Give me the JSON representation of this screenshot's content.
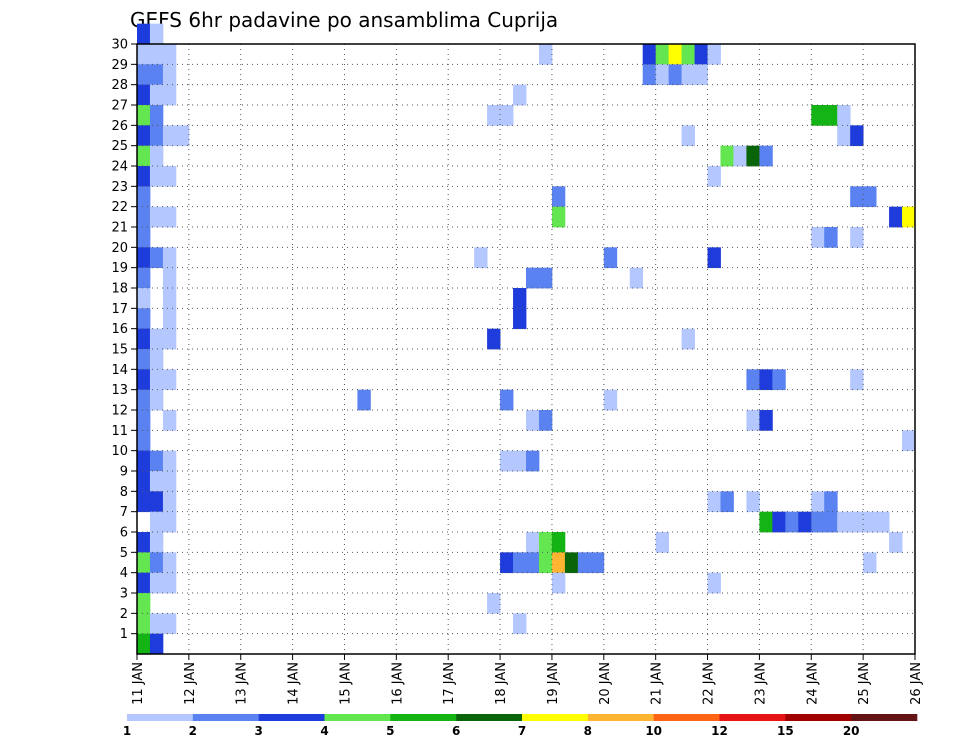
{
  "chart_data": {
    "type": "heatmap",
    "title": "GEFS 6hr padavine po ansamblima Cuprija",
    "xlabel": "",
    "ylabel": "",
    "x_ticks": [
      "11 JAN",
      "12 JAN",
      "13 JAN",
      "14 JAN",
      "15 JAN",
      "16 JAN",
      "17 JAN",
      "18 JAN",
      "19 JAN",
      "20 JAN",
      "21 JAN",
      "22 JAN",
      "23 JAN",
      "24 JAN",
      "25 JAN",
      "26 JAN"
    ],
    "xlim": [
      11,
      26
    ],
    "y_ticks": [
      "1",
      "2",
      "3",
      "4",
      "5",
      "6",
      "7",
      "8",
      "9",
      "10",
      "11",
      "12",
      "13",
      "14",
      "15",
      "16",
      "17",
      "18",
      "19",
      "20",
      "21",
      "22",
      "23",
      "24",
      "25",
      "26",
      "27",
      "28",
      "29",
      "30"
    ],
    "ylim": [
      0,
      30
    ],
    "grid": true,
    "time_step_hours": 6,
    "legend": {
      "placement": "bottom",
      "colors": [
        "#b4c8ff",
        "#5a82f0",
        "#1e3cdc",
        "#64e650",
        "#14b414",
        "#0a640a",
        "#ffff00",
        "#ffb432",
        "#ff6414",
        "#e61414",
        "#a00000",
        "#641414"
      ],
      "labels": [
        "1",
        "2",
        "3",
        "4",
        "5",
        "6",
        "7",
        "8",
        "10",
        "12",
        "15",
        "20"
      ]
    },
    "cells": [
      {
        "member": 30,
        "day": 11.0,
        "level": 3
      },
      {
        "member": 30,
        "day": 11.25,
        "level": 1
      },
      {
        "member": 29,
        "day": 11.0,
        "level": 1
      },
      {
        "member": 29,
        "day": 11.25,
        "level": 1
      },
      {
        "member": 29,
        "day": 11.5,
        "level": 1
      },
      {
        "member": 29,
        "day": 18.75,
        "level": 1
      },
      {
        "member": 29,
        "day": 20.75,
        "level": 3
      },
      {
        "member": 29,
        "day": 21.0,
        "level": 4
      },
      {
        "member": 29,
        "day": 21.25,
        "level": 7
      },
      {
        "member": 29,
        "day": 21.5,
        "level": 4
      },
      {
        "member": 29,
        "day": 21.75,
        "level": 3
      },
      {
        "member": 29,
        "day": 22.0,
        "level": 1
      },
      {
        "member": 28,
        "day": 11.0,
        "level": 2
      },
      {
        "member": 28,
        "day": 11.25,
        "level": 2
      },
      {
        "member": 28,
        "day": 11.5,
        "level": 1
      },
      {
        "member": 28,
        "day": 20.75,
        "level": 2
      },
      {
        "member": 28,
        "day": 21.0,
        "level": 1
      },
      {
        "member": 28,
        "day": 21.25,
        "level": 2
      },
      {
        "member": 28,
        "day": 21.5,
        "level": 1
      },
      {
        "member": 28,
        "day": 21.75,
        "level": 1
      },
      {
        "member": 27,
        "day": 11.0,
        "level": 3
      },
      {
        "member": 27,
        "day": 11.25,
        "level": 1
      },
      {
        "member": 27,
        "day": 11.5,
        "level": 1
      },
      {
        "member": 27,
        "day": 18.25,
        "level": 1
      },
      {
        "member": 26,
        "day": 11.0,
        "level": 4
      },
      {
        "member": 26,
        "day": 11.25,
        "level": 2
      },
      {
        "member": 26,
        "day": 17.75,
        "level": 1
      },
      {
        "member": 26,
        "day": 18.0,
        "level": 1
      },
      {
        "member": 26,
        "day": 24.0,
        "level": 5
      },
      {
        "member": 26,
        "day": 24.25,
        "level": 5
      },
      {
        "member": 26,
        "day": 24.5,
        "level": 1
      },
      {
        "member": 25,
        "day": 11.0,
        "level": 3
      },
      {
        "member": 25,
        "day": 11.25,
        "level": 2
      },
      {
        "member": 25,
        "day": 11.5,
        "level": 1
      },
      {
        "member": 25,
        "day": 11.75,
        "level": 1
      },
      {
        "member": 25,
        "day": 21.5,
        "level": 1
      },
      {
        "member": 25,
        "day": 24.5,
        "level": 1
      },
      {
        "member": 25,
        "day": 24.75,
        "level": 3
      },
      {
        "member": 24,
        "day": 11.0,
        "level": 4
      },
      {
        "member": 24,
        "day": 11.25,
        "level": 1
      },
      {
        "member": 24,
        "day": 22.25,
        "level": 4
      },
      {
        "member": 24,
        "day": 22.5,
        "level": 1
      },
      {
        "member": 24,
        "day": 22.75,
        "level": 6
      },
      {
        "member": 24,
        "day": 23.0,
        "level": 2
      },
      {
        "member": 23,
        "day": 11.0,
        "level": 3
      },
      {
        "member": 23,
        "day": 11.25,
        "level": 1
      },
      {
        "member": 23,
        "day": 11.5,
        "level": 1
      },
      {
        "member": 23,
        "day": 22.0,
        "level": 1
      },
      {
        "member": 22,
        "day": 11.0,
        "level": 2
      },
      {
        "member": 22,
        "day": 19.0,
        "level": 2
      },
      {
        "member": 22,
        "day": 24.75,
        "level": 2
      },
      {
        "member": 22,
        "day": 25.0,
        "level": 2
      },
      {
        "member": 21,
        "day": 11.0,
        "level": 2
      },
      {
        "member": 21,
        "day": 11.25,
        "level": 1
      },
      {
        "member": 21,
        "day": 11.5,
        "level": 1
      },
      {
        "member": 21,
        "day": 19.0,
        "level": 4
      },
      {
        "member": 21,
        "day": 25.5,
        "level": 3
      },
      {
        "member": 21,
        "day": 25.75,
        "level": 7
      },
      {
        "member": 20,
        "day": 11.0,
        "level": 2
      },
      {
        "member": 20,
        "day": 24.0,
        "level": 1
      },
      {
        "member": 20,
        "day": 24.25,
        "level": 2
      },
      {
        "member": 20,
        "day": 24.75,
        "level": 1
      },
      {
        "member": 19,
        "day": 11.0,
        "level": 3
      },
      {
        "member": 19,
        "day": 11.25,
        "level": 2
      },
      {
        "member": 19,
        "day": 11.5,
        "level": 1
      },
      {
        "member": 19,
        "day": 17.5,
        "level": 1
      },
      {
        "member": 19,
        "day": 20.0,
        "level": 2
      },
      {
        "member": 19,
        "day": 22.0,
        "level": 3
      },
      {
        "member": 18,
        "day": 11.0,
        "level": 2
      },
      {
        "member": 18,
        "day": 11.5,
        "level": 1
      },
      {
        "member": 18,
        "day": 18.5,
        "level": 2
      },
      {
        "member": 18,
        "day": 18.75,
        "level": 2
      },
      {
        "member": 18,
        "day": 20.5,
        "level": 1
      },
      {
        "member": 17,
        "day": 11.0,
        "level": 1
      },
      {
        "member": 17,
        "day": 11.5,
        "level": 1
      },
      {
        "member": 17,
        "day": 18.25,
        "level": 3
      },
      {
        "member": 16,
        "day": 11.0,
        "level": 2
      },
      {
        "member": 16,
        "day": 11.5,
        "level": 1
      },
      {
        "member": 16,
        "day": 18.25,
        "level": 3
      },
      {
        "member": 15,
        "day": 11.0,
        "level": 3
      },
      {
        "member": 15,
        "day": 11.25,
        "level": 1
      },
      {
        "member": 15,
        "day": 11.5,
        "level": 1
      },
      {
        "member": 15,
        "day": 17.75,
        "level": 3
      },
      {
        "member": 15,
        "day": 21.5,
        "level": 1
      },
      {
        "member": 14,
        "day": 11.0,
        "level": 2
      },
      {
        "member": 14,
        "day": 11.25,
        "level": 1
      },
      {
        "member": 13,
        "day": 11.0,
        "level": 3
      },
      {
        "member": 13,
        "day": 11.25,
        "level": 1
      },
      {
        "member": 13,
        "day": 11.5,
        "level": 1
      },
      {
        "member": 13,
        "day": 22.75,
        "level": 2
      },
      {
        "member": 13,
        "day": 23.0,
        "level": 3
      },
      {
        "member": 13,
        "day": 23.25,
        "level": 2
      },
      {
        "member": 13,
        "day": 24.75,
        "level": 1
      },
      {
        "member": 12,
        "day": 11.0,
        "level": 2
      },
      {
        "member": 12,
        "day": 11.25,
        "level": 1
      },
      {
        "member": 12,
        "day": 15.25,
        "level": 2
      },
      {
        "member": 12,
        "day": 18.0,
        "level": 2
      },
      {
        "member": 12,
        "day": 20.0,
        "level": 1
      },
      {
        "member": 11,
        "day": 11.0,
        "level": 2
      },
      {
        "member": 11,
        "day": 11.5,
        "level": 1
      },
      {
        "member": 11,
        "day": 18.5,
        "level": 1
      },
      {
        "member": 11,
        "day": 18.75,
        "level": 2
      },
      {
        "member": 11,
        "day": 22.75,
        "level": 1
      },
      {
        "member": 11,
        "day": 23.0,
        "level": 3
      },
      {
        "member": 10,
        "day": 11.0,
        "level": 2
      },
      {
        "member": 10,
        "day": 25.75,
        "level": 1
      },
      {
        "member": 9,
        "day": 11.0,
        "level": 3
      },
      {
        "member": 9,
        "day": 11.25,
        "level": 2
      },
      {
        "member": 9,
        "day": 11.5,
        "level": 1
      },
      {
        "member": 9,
        "day": 18.0,
        "level": 1
      },
      {
        "member": 9,
        "day": 18.25,
        "level": 1
      },
      {
        "member": 9,
        "day": 18.5,
        "level": 2
      },
      {
        "member": 8,
        "day": 11.0,
        "level": 3
      },
      {
        "member": 8,
        "day": 11.25,
        "level": 1
      },
      {
        "member": 8,
        "day": 11.5,
        "level": 1
      },
      {
        "member": 7,
        "day": 11.0,
        "level": 3
      },
      {
        "member": 7,
        "day": 11.25,
        "level": 3
      },
      {
        "member": 7,
        "day": 11.5,
        "level": 1
      },
      {
        "member": 7,
        "day": 22.0,
        "level": 1
      },
      {
        "member": 7,
        "day": 22.25,
        "level": 2
      },
      {
        "member": 7,
        "day": 22.75,
        "level": 1
      },
      {
        "member": 7,
        "day": 24.0,
        "level": 1
      },
      {
        "member": 7,
        "day": 24.25,
        "level": 2
      },
      {
        "member": 6,
        "day": 11.25,
        "level": 1
      },
      {
        "member": 6,
        "day": 11.5,
        "level": 1
      },
      {
        "member": 6,
        "day": 23.0,
        "level": 5
      },
      {
        "member": 6,
        "day": 23.25,
        "level": 3
      },
      {
        "member": 6,
        "day": 23.5,
        "level": 2
      },
      {
        "member": 6,
        "day": 23.75,
        "level": 3
      },
      {
        "member": 6,
        "day": 24.0,
        "level": 2
      },
      {
        "member": 6,
        "day": 24.25,
        "level": 2
      },
      {
        "member": 6,
        "day": 24.5,
        "level": 1
      },
      {
        "member": 6,
        "day": 24.75,
        "level": 1
      },
      {
        "member": 6,
        "day": 25.0,
        "level": 1
      },
      {
        "member": 6,
        "day": 25.25,
        "level": 1
      },
      {
        "member": 5,
        "day": 11.0,
        "level": 3
      },
      {
        "member": 5,
        "day": 11.25,
        "level": 1
      },
      {
        "member": 5,
        "day": 18.5,
        "level": 1
      },
      {
        "member": 5,
        "day": 18.75,
        "level": 4
      },
      {
        "member": 5,
        "day": 19.0,
        "level": 5
      },
      {
        "member": 5,
        "day": 21.0,
        "level": 1
      },
      {
        "member": 5,
        "day": 25.5,
        "level": 1
      },
      {
        "member": 4,
        "day": 11.0,
        "level": 4
      },
      {
        "member": 4,
        "day": 11.25,
        "level": 2
      },
      {
        "member": 4,
        "day": 11.5,
        "level": 1
      },
      {
        "member": 4,
        "day": 18.0,
        "level": 3
      },
      {
        "member": 4,
        "day": 18.25,
        "level": 2
      },
      {
        "member": 4,
        "day": 18.5,
        "level": 2
      },
      {
        "member": 4,
        "day": 18.75,
        "level": 4
      },
      {
        "member": 4,
        "day": 19.0,
        "level": 8
      },
      {
        "member": 4,
        "day": 19.25,
        "level": 6
      },
      {
        "member": 4,
        "day": 19.5,
        "level": 2
      },
      {
        "member": 4,
        "day": 19.75,
        "level": 2
      },
      {
        "member": 4,
        "day": 25.0,
        "level": 1
      },
      {
        "member": 3,
        "day": 11.0,
        "level": 3
      },
      {
        "member": 3,
        "day": 11.25,
        "level": 1
      },
      {
        "member": 3,
        "day": 11.5,
        "level": 1
      },
      {
        "member": 3,
        "day": 19.0,
        "level": 1
      },
      {
        "member": 3,
        "day": 22.0,
        "level": 1
      },
      {
        "member": 2,
        "day": 11.0,
        "level": 4
      },
      {
        "member": 2,
        "day": 17.75,
        "level": 1
      },
      {
        "member": 1,
        "day": 11.0,
        "level": 4
      },
      {
        "member": 1,
        "day": 11.25,
        "level": 1
      },
      {
        "member": 1,
        "day": 11.5,
        "level": 1
      },
      {
        "member": 1,
        "day": 18.25,
        "level": 1
      },
      {
        "member": 0,
        "day": 11.0,
        "level": 5
      },
      {
        "member": 0,
        "day": 11.25,
        "level": 3
      }
    ]
  }
}
